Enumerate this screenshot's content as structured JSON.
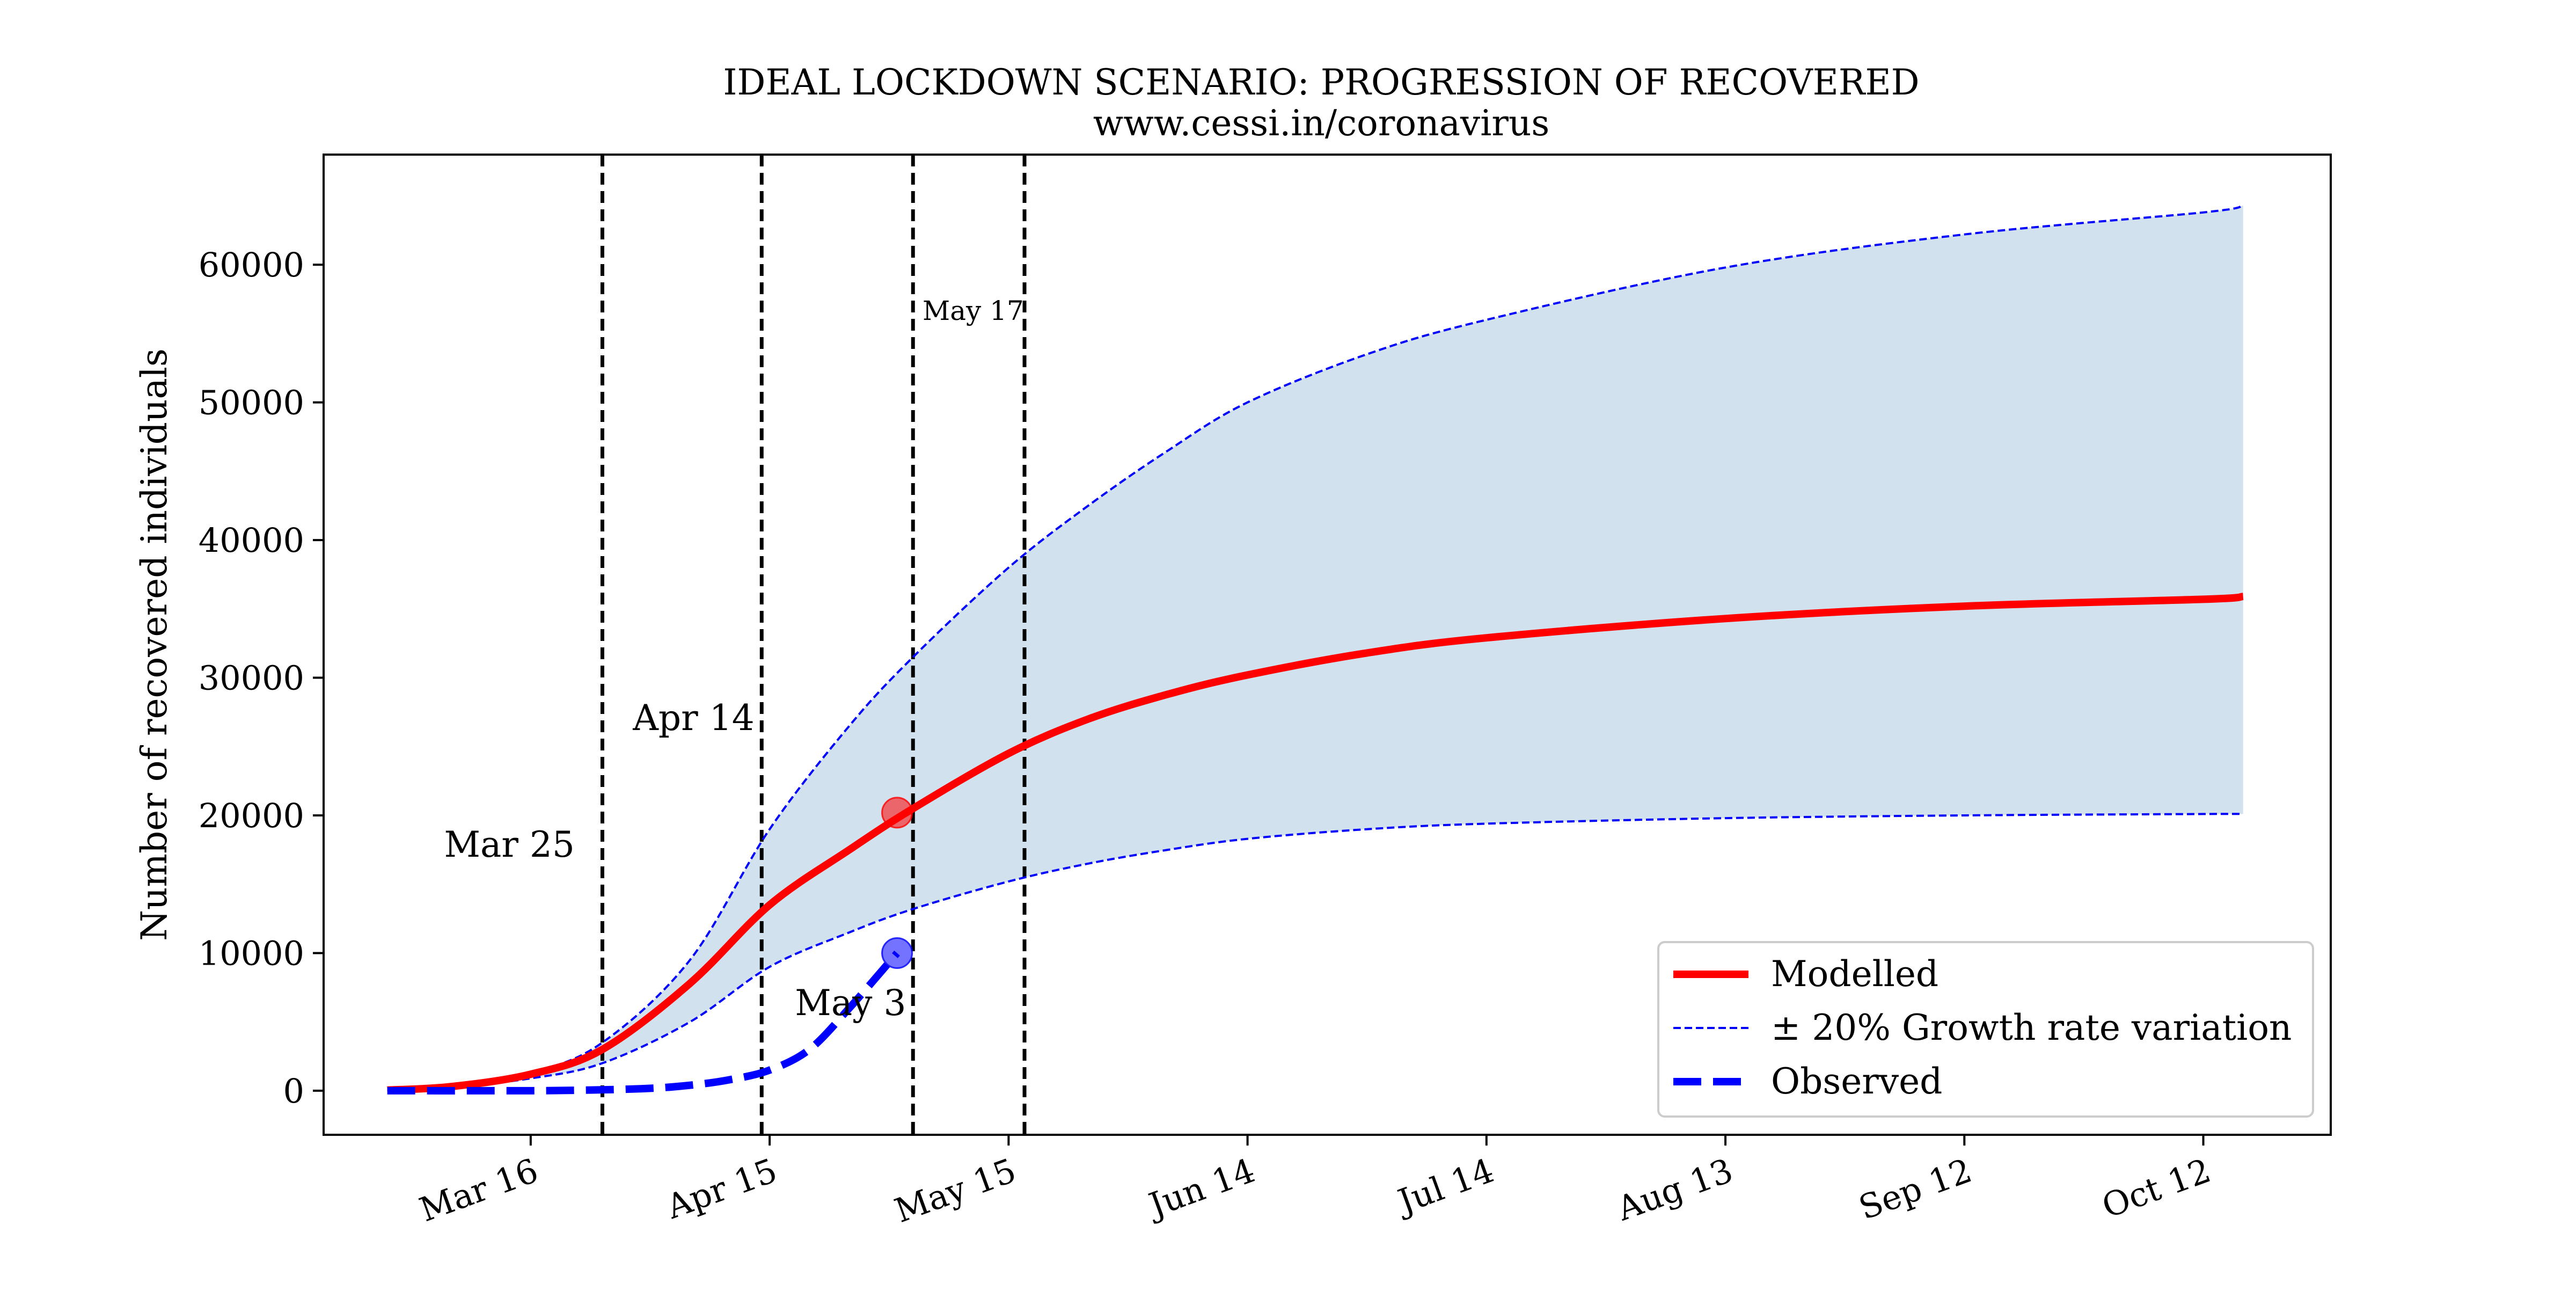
{
  "chart_data": {
    "type": "line",
    "title": "IDEAL LOCKDOWN SCENARIO: PROGRESSION OF RECOVERED",
    "subtitle": "www.cessi.in/coronavirus",
    "xlabel": "",
    "ylabel": "Number of recovered individuals",
    "x_axis": {
      "type": "date",
      "ticks": [
        "2020-03-16",
        "2020-04-15",
        "2020-05-15",
        "2020-06-14",
        "2020-07-14",
        "2020-08-13",
        "2020-09-12",
        "2020-10-12"
      ],
      "tick_labels": [
        "Mar 16",
        "Apr 15",
        "May 15",
        "Jun 14",
        "Jul 14",
        "Aug 13",
        "Sep 12",
        "Oct 12"
      ],
      "range": [
        "2020-02-19",
        "2020-10-28"
      ]
    },
    "y_axis": {
      "ticks": [
        0,
        10000,
        20000,
        30000,
        40000,
        50000,
        60000
      ],
      "tick_labels": [
        "0",
        "10000",
        "20000",
        "30000",
        "40000",
        "50000",
        "60000"
      ],
      "range": [
        -3200,
        68000
      ]
    },
    "grid": false,
    "legend_position": "bottom-right",
    "vlines": [
      {
        "date": "2020-03-25",
        "label": "Mar 25",
        "style": "dashed"
      },
      {
        "date": "2020-04-14",
        "label": "Apr 14",
        "style": "dashed"
      },
      {
        "date": "2020-05-03",
        "label": "May 3",
        "style": "dashed"
      },
      {
        "date": "2020-05-17",
        "label": "May 17",
        "style": "dashed"
      }
    ],
    "markers": [
      {
        "date": "2020-05-01",
        "value": 20200,
        "color": "#ff0000"
      },
      {
        "date": "2020-05-01",
        "value": 10000,
        "color": "#0000ff"
      }
    ],
    "band": {
      "color": "#d1e2ee",
      "dates": [
        "2020-02-27",
        "2020-03-06",
        "2020-03-16",
        "2020-03-25",
        "2020-04-05",
        "2020-04-15",
        "2020-04-25",
        "2020-05-03",
        "2020-05-15",
        "2020-05-25",
        "2020-06-04",
        "2020-06-14",
        "2020-06-29",
        "2020-07-14",
        "2020-08-13",
        "2020-09-12",
        "2020-10-12",
        "2020-10-17"
      ],
      "upper": [
        50,
        300,
        1300,
        3500,
        9500,
        19000,
        26500,
        31500,
        38000,
        42500,
        46500,
        50000,
        53500,
        56000,
        59800,
        62200,
        63800,
        64300
      ],
      "lower": [
        50,
        250,
        900,
        2000,
        5000,
        9000,
        11500,
        13200,
        15200,
        16500,
        17500,
        18300,
        19000,
        19400,
        19800,
        20000,
        20100,
        20100
      ]
    },
    "series": [
      {
        "name": "Modelled",
        "color": "#ff0000",
        "style": "solid",
        "dates": [
          "2020-02-27",
          "2020-03-06",
          "2020-03-16",
          "2020-03-25",
          "2020-04-05",
          "2020-04-15",
          "2020-04-25",
          "2020-05-03",
          "2020-05-15",
          "2020-05-25",
          "2020-06-04",
          "2020-06-14",
          "2020-06-29",
          "2020-07-14",
          "2020-08-13",
          "2020-09-12",
          "2020-10-12",
          "2020-10-17"
        ],
        "values": [
          50,
          300,
          1200,
          3000,
          7800,
          13500,
          17500,
          20500,
          24500,
          27000,
          28800,
          30200,
          31800,
          32900,
          34300,
          35200,
          35700,
          35900
        ]
      },
      {
        "name": "± 20% Growth rate variation",
        "color": "#0000ff",
        "style": "thin-dashed",
        "dates": [],
        "values": []
      },
      {
        "name": "Observed",
        "color": "#0000ff",
        "style": "dashed",
        "dates": [
          "2020-02-27",
          "2020-03-10",
          "2020-03-20",
          "2020-03-30",
          "2020-04-05",
          "2020-04-10",
          "2020-04-15",
          "2020-04-20",
          "2020-04-25",
          "2020-05-01"
        ],
        "values": [
          0,
          0,
          20,
          150,
          400,
          800,
          1500,
          3000,
          6000,
          10000
        ]
      }
    ]
  }
}
